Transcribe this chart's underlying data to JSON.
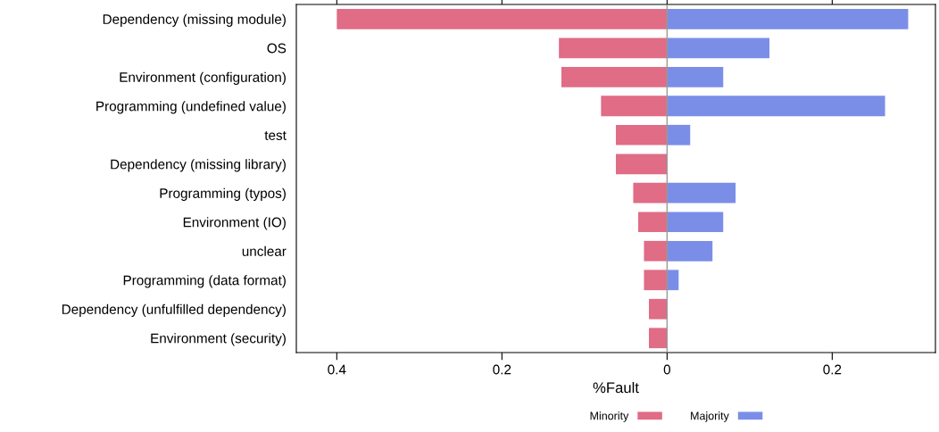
{
  "chart_data": {
    "type": "bar",
    "orientation": "horizontal",
    "xlabel": "%Fault",
    "categories": [
      "Dependency (missing module)",
      "OS",
      "Environment (configuration)",
      "Programming (undefined value)",
      "test",
      "Dependency (missing library)",
      "Programming (typos)",
      "Environment (IO)",
      "unclear",
      "Programming (data format)",
      "Dependency (unfulfilled dependency)",
      "Environment (security)"
    ],
    "series": [
      {
        "name": "Minority",
        "color": "#e06c86",
        "values": [
          -0.4,
          -0.131,
          -0.128,
          -0.08,
          -0.062,
          -0.062,
          -0.041,
          -0.035,
          -0.028,
          -0.028,
          -0.022,
          -0.022
        ]
      },
      {
        "name": "Majority",
        "color": "#7a8ee8",
        "values": [
          0.292,
          0.124,
          0.068,
          0.264,
          0.028,
          null,
          0.083,
          0.068,
          0.055,
          0.014,
          null,
          null
        ]
      }
    ],
    "xlim": [
      -0.449,
      0.325
    ],
    "xticks": [
      {
        "value": -0.4,
        "label": "0.4"
      },
      {
        "value": -0.2,
        "label": "0.2"
      },
      0,
      0.2
    ],
    "ref_lines": [
      {
        "axis": "x",
        "value": 0,
        "color": "#999999"
      }
    ],
    "stacked": true,
    "grid": false,
    "legend": "bottom"
  }
}
